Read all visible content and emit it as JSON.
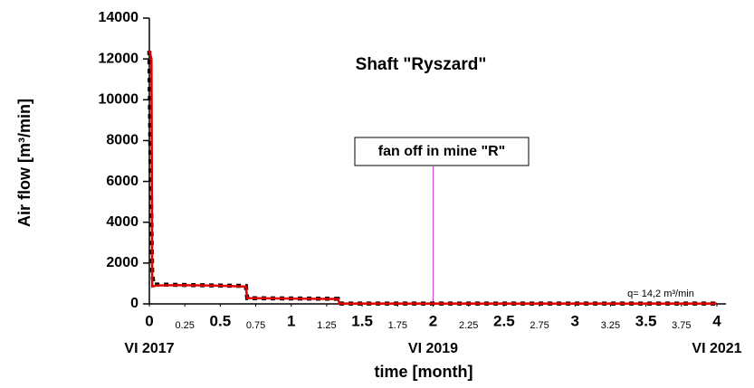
{
  "chart_data": {
    "type": "line",
    "title": "Shaft  \"Ryszard\"",
    "ylabel": "Air  flow  [m³/min]",
    "xlabel": "time [month]",
    "annotation": "fan off in mine \"R\"",
    "annotation_x": 2,
    "annotation_color": "#e040e0",
    "note": "q= 14,2 m³/min",
    "date_labels": {
      "x": [
        0,
        2,
        4
      ],
      "labels": [
        "VI 2017",
        "VI 2019",
        "VI 2021"
      ]
    },
    "xlim": [
      0,
      4
    ],
    "xticks": [
      0,
      0.25,
      0.5,
      0.75,
      1,
      1.25,
      1.5,
      1.75,
      2,
      2.25,
      2.5,
      2.75,
      3,
      3.25,
      3.5,
      3.75,
      4
    ],
    "ylim": [
      0,
      14000
    ],
    "yticks": [
      0,
      2000,
      4000,
      6000,
      8000,
      10000,
      12000,
      14000
    ],
    "series": [
      {
        "color": "#000000",
        "style": "dashed",
        "x": [
          0,
          0.01,
          0.02,
          0.03,
          0.68,
          0.69,
          1.33,
          1.34,
          4
        ],
        "values": [
          12400,
          6000,
          1500,
          950,
          880,
          280,
          250,
          14,
          14
        ]
      },
      {
        "color": "#e00000",
        "style": "solid",
        "x": [
          0,
          0.015,
          0.02,
          0.05,
          0.2,
          0.4,
          0.55,
          0.68,
          0.69,
          1.0,
          1.33,
          1.34,
          2,
          3,
          4
        ],
        "values": [
          12400,
          12000,
          850,
          900,
          920,
          900,
          880,
          850,
          280,
          260,
          240,
          14,
          14,
          14,
          14
        ]
      }
    ]
  }
}
